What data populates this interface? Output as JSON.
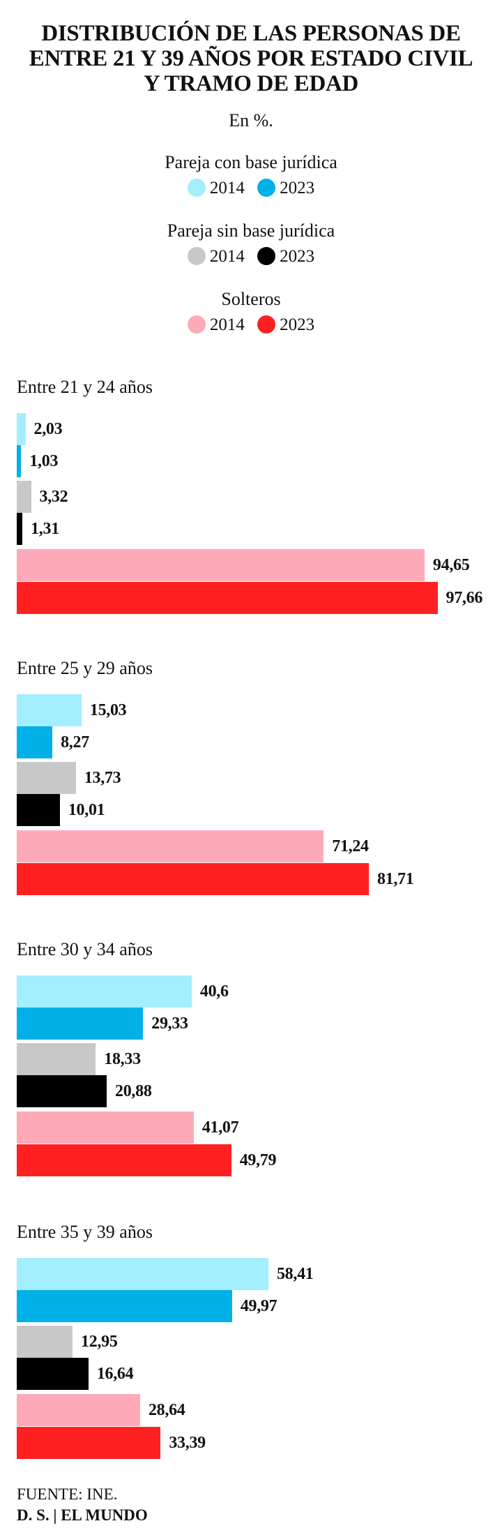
{
  "title_lines": [
    "DISTRIBUCIÓN DE LAS PERSONAS DE",
    "ENTRE 21 Y 39  AÑOS POR ESTADO CIVIL",
    "Y TRAMO DE EDAD"
  ],
  "subtitle": "En %.",
  "legend": [
    {
      "title": "Pareja con base jurídica",
      "items": [
        {
          "label": "2014",
          "color": "#a3efff"
        },
        {
          "label": "2023",
          "color": "#00b0e6"
        }
      ]
    },
    {
      "title": "Pareja sin base jurídica",
      "items": [
        {
          "label": "2014",
          "color": "#c8c8c8"
        },
        {
          "label": "2023",
          "color": "#000000"
        }
      ]
    },
    {
      "title": "Solteros",
      "items": [
        {
          "label": "2014",
          "color": "#ffaab8"
        },
        {
          "label": "2023",
          "color": "#ff2121"
        }
      ]
    }
  ],
  "chart_data": {
    "type": "bar",
    "orientation": "horizontal",
    "title": "DISTRIBUCIÓN DE LAS PERSONAS DE ENTRE 21 Y 39  AÑOS POR ESTADO CIVIL Y TRAMO DE EDAD",
    "subtitle": "En %.",
    "series_colors": [
      "#a3efff",
      "#00b0e6",
      "#c8c8c8",
      "#000000",
      "#ffaab8",
      "#ff2121"
    ],
    "xlim": [
      0,
      100
    ],
    "groups": [
      {
        "label": "Entre 21 y 24 años",
        "values": [
          2.03,
          1.03,
          3.32,
          1.31,
          94.65,
          97.66
        ],
        "labels": [
          "2,03",
          "1,03",
          "3,32",
          "1,31",
          "94,65",
          "97,66"
        ]
      },
      {
        "label": "Entre 25 y 29 años",
        "values": [
          15.03,
          8.27,
          13.73,
          10.01,
          71.24,
          81.71
        ],
        "labels": [
          "15,03",
          "8,27",
          "13,73",
          "10,01",
          "71,24",
          "81,71"
        ]
      },
      {
        "label": "Entre 30 y 34 años",
        "values": [
          40.6,
          29.33,
          18.33,
          20.88,
          41.07,
          49.79
        ],
        "labels": [
          "40,6",
          "29,33",
          "18,33",
          "20,88",
          "41,07",
          "49,79"
        ]
      },
      {
        "label": "Entre 35 y 39 años",
        "values": [
          58.41,
          49.97,
          12.95,
          16.64,
          28.64,
          33.39
        ],
        "labels": [
          "58,41",
          "49,97",
          "12,95",
          "16,64",
          "28,64",
          "33,39"
        ]
      }
    ]
  },
  "footer": {
    "source": "FUENTE: INE.",
    "credit": "D. S. | EL MUNDO"
  }
}
